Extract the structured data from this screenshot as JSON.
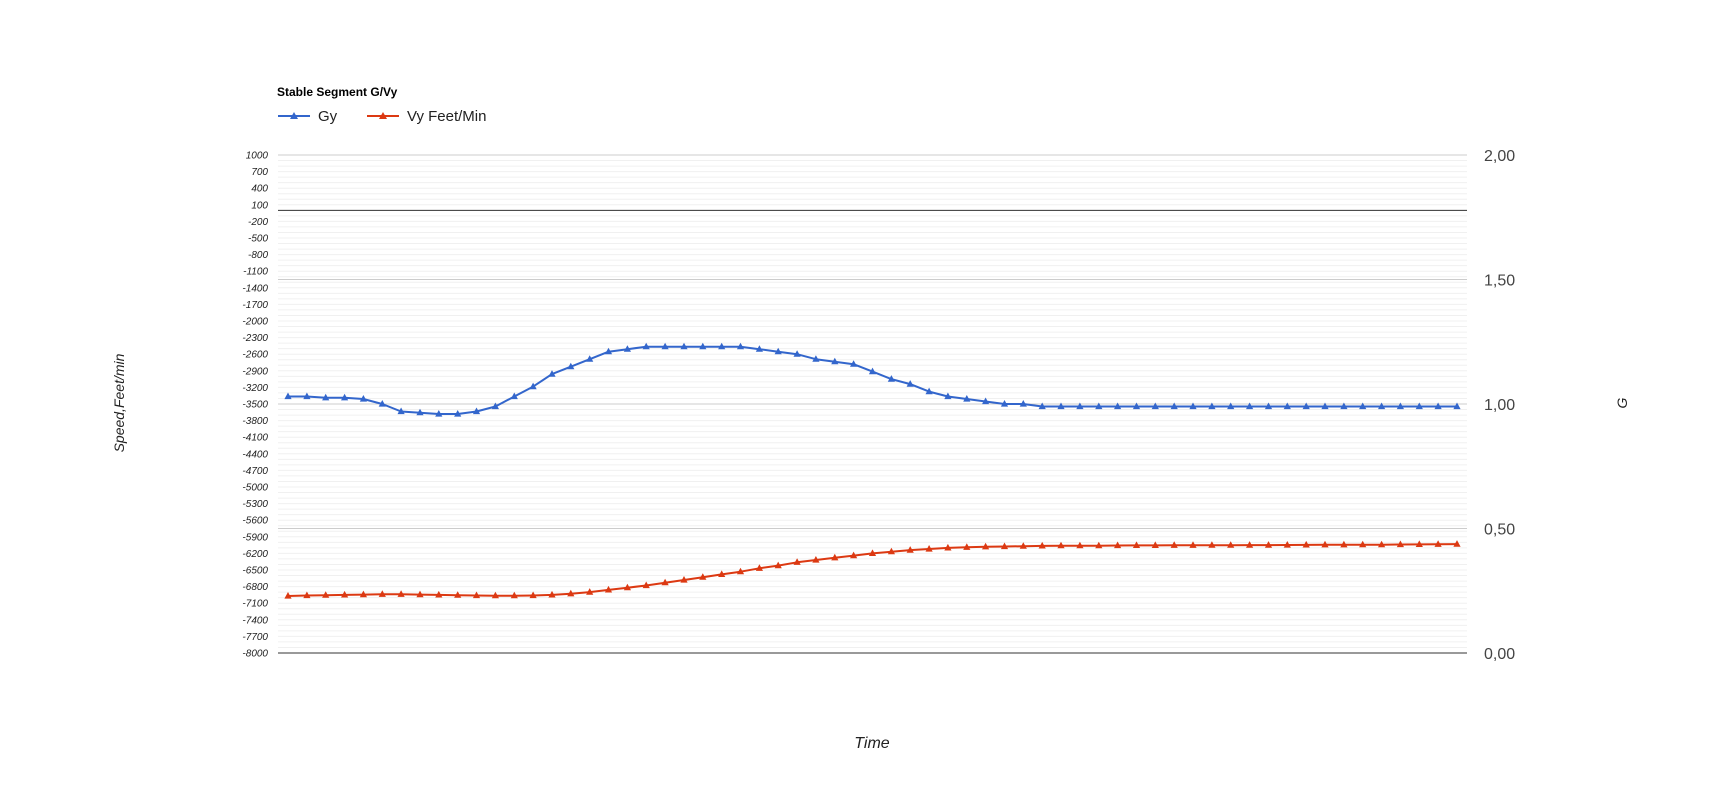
{
  "chart_data": {
    "type": "line",
    "title": "Stable Segment G/Vy",
    "xlabel": "Time",
    "ylabel_left": "Speed,Feet/min",
    "ylabel_right": "G",
    "legend_position": "top-left",
    "grid": true,
    "y_left": {
      "min": -8000,
      "max": 1000,
      "tick_labels": [
        "1000",
        "700",
        "400",
        "100",
        "-200",
        "-500",
        "-800",
        "-1100",
        "-1400",
        "-1700",
        "-2000",
        "-2300",
        "-2600",
        "-2900",
        "-3200",
        "-3500",
        "-3800",
        "-4100",
        "-4400",
        "-4700",
        "-5000",
        "-5300",
        "-5600",
        "-5900",
        "-6200",
        "-6500",
        "-6800",
        "-7100",
        "-7400",
        "-7700",
        "-8000"
      ],
      "tick_values": [
        1000,
        700,
        400,
        100,
        -200,
        -500,
        -800,
        -1100,
        -1400,
        -1700,
        -2000,
        -2300,
        -2600,
        -2900,
        -3200,
        -3500,
        -3800,
        -4100,
        -4400,
        -4700,
        -5000,
        -5300,
        -5600,
        -5900,
        -6200,
        -6500,
        -6800,
        -7100,
        -7400,
        -7700,
        -8000
      ],
      "baseline": 0
    },
    "y_right": {
      "min": 0,
      "max": 2,
      "tick_labels": [
        "2,00",
        "1,50",
        "1,00",
        "0,50",
        "0,00"
      ],
      "tick_values": [
        2,
        1.5,
        1,
        0.5,
        0
      ]
    },
    "series": [
      {
        "name": "Gy",
        "axis": "right",
        "color": "#3366cc",
        "marker": "triangle",
        "values": [
          1.03,
          1.03,
          1.025,
          1.025,
          1.02,
          1.0,
          0.97,
          0.965,
          0.96,
          0.96,
          0.97,
          0.99,
          1.03,
          1.07,
          1.12,
          1.15,
          1.18,
          1.21,
          1.22,
          1.23,
          1.23,
          1.23,
          1.23,
          1.23,
          1.23,
          1.22,
          1.21,
          1.2,
          1.18,
          1.17,
          1.16,
          1.13,
          1.1,
          1.08,
          1.05,
          1.03,
          1.02,
          1.01,
          1.0,
          1.0,
          0.99,
          0.99,
          0.99,
          0.99,
          0.99,
          0.99,
          0.99,
          0.99,
          0.99,
          0.99,
          0.99,
          0.99,
          0.99,
          0.99,
          0.99,
          0.99,
          0.99,
          0.99,
          0.99,
          0.99,
          0.99,
          0.99,
          0.99
        ]
      },
      {
        "name": "Vy Feet/Min",
        "axis": "left",
        "color": "#dc3912",
        "marker": "triangle",
        "values": [
          -6970,
          -6960,
          -6955,
          -6950,
          -6945,
          -6940,
          -6940,
          -6945,
          -6950,
          -6955,
          -6960,
          -6965,
          -6965,
          -6960,
          -6950,
          -6930,
          -6900,
          -6860,
          -6820,
          -6780,
          -6730,
          -6680,
          -6630,
          -6580,
          -6530,
          -6470,
          -6420,
          -6360,
          -6320,
          -6280,
          -6240,
          -6200,
          -6170,
          -6140,
          -6120,
          -6100,
          -6090,
          -6080,
          -6075,
          -6070,
          -6065,
          -6060,
          -6060,
          -6060,
          -6058,
          -6056,
          -6055,
          -6054,
          -6053,
          -6052,
          -6051,
          -6050,
          -6050,
          -6048,
          -6046,
          -6045,
          -6044,
          -6043,
          -6042,
          -6040,
          -6038,
          -6035,
          -6032
        ]
      }
    ]
  }
}
